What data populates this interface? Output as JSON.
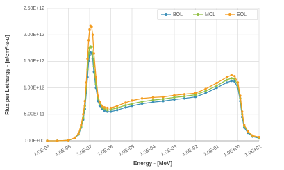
{
  "chart_data": {
    "type": "line",
    "x_label": "Energy - [MeV]",
    "y_label": "Flux per Lethargy - [n/cm²-s-u]",
    "x": [
      1e-09,
      3e-09,
      1e-08,
      2e-08,
      3e-08,
      4e-08,
      5e-08,
      6e-08,
      7e-08,
      8e-08,
      9e-08,
      1e-07,
      1.1e-07,
      1.25e-07,
      1.4e-07,
      1.6e-07,
      2e-07,
      2.5e-07,
      3e-07,
      4e-07,
      5e-07,
      7e-07,
      1e-06,
      2e-06,
      5e-06,
      1e-05,
      3e-05,
      0.0001,
      0.0003,
      0.001,
      0.003,
      0.01,
      0.03,
      0.1,
      0.3,
      0.5,
      0.7,
      1,
      1.3,
      1.6,
      2,
      3,
      5,
      10
    ],
    "series": [
      {
        "name": "BOL",
        "color": "#3b8fb8",
        "values": [
          0,
          0,
          10000000000.0,
          50000000000.0,
          120000000000.0,
          250000000000.0,
          400000000000.0,
          600000000000.0,
          900000000000.0,
          1200000000000.0,
          1500000000000.0,
          1620000000000.0,
          1670000000000.0,
          1650000000000.0,
          1550000000000.0,
          1300000000000.0,
          1000000000000.0,
          750000000000.0,
          660000000000.0,
          600000000000.0,
          570000000000.0,
          550000000000.0,
          550000000000.0,
          580000000000.0,
          630000000000.0,
          660000000000.0,
          700000000000.0,
          730000000000.0,
          750000000000.0,
          780000000000.0,
          800000000000.0,
          830000000000.0,
          900000000000.0,
          1000000000000.0,
          1100000000000.0,
          1130000000000.0,
          1120000000000.0,
          1000000000000.0,
          750000000000.0,
          450000000000.0,
          250000000000.0,
          150000000000.0,
          80000000000.0,
          50000000000.0
        ]
      },
      {
        "name": "MOL",
        "color": "#93c047",
        "values": [
          0,
          0,
          10000000000.0,
          50000000000.0,
          130000000000.0,
          270000000000.0,
          430000000000.0,
          660000000000.0,
          1000000000000.0,
          1350000000000.0,
          1650000000000.0,
          1750000000000.0,
          1780000000000.0,
          1770000000000.0,
          1650000000000.0,
          1400000000000.0,
          1070000000000.0,
          800000000000.0,
          700000000000.0,
          630000000000.0,
          600000000000.0,
          580000000000.0,
          590000000000.0,
          620000000000.0,
          670000000000.0,
          700000000000.0,
          740000000000.0,
          770000000000.0,
          790000000000.0,
          820000000000.0,
          840000000000.0,
          870000000000.0,
          940000000000.0,
          1040000000000.0,
          1150000000000.0,
          1180000000000.0,
          1170000000000.0,
          1050000000000.0,
          800000000000.0,
          500000000000.0,
          280000000000.0,
          170000000000.0,
          90000000000.0,
          60000000000.0
        ]
      },
      {
        "name": "EOL",
        "color": "#f39c1f",
        "values": [
          0,
          0,
          10000000000.0,
          60000000000.0,
          140000000000.0,
          300000000000.0,
          500000000000.0,
          750000000000.0,
          1100000000000.0,
          1550000000000.0,
          1900000000000.0,
          2100000000000.0,
          2170000000000.0,
          2150000000000.0,
          2000000000000.0,
          1650000000000.0,
          1200000000000.0,
          850000000000.0,
          730000000000.0,
          660000000000.0,
          630000000000.0,
          620000000000.0,
          620000000000.0,
          660000000000.0,
          720000000000.0,
          760000000000.0,
          800000000000.0,
          820000000000.0,
          830000000000.0,
          860000000000.0,
          880000000000.0,
          900000000000.0,
          980000000000.0,
          1090000000000.0,
          1200000000000.0,
          1240000000000.0,
          1220000000000.0,
          1100000000000.0,
          850000000000.0,
          550000000000.0,
          300000000000.0,
          180000000000.0,
          100000000000.0,
          70000000000.0
        ]
      }
    ],
    "xlim": [
      1e-09,
      10
    ],
    "x_log": true,
    "xticks": [
      {
        "value": 1e-09,
        "label": "1.0E-09"
      },
      {
        "value": 1e-08,
        "label": "1.0E-08"
      },
      {
        "value": 1e-07,
        "label": "1.0E-07"
      },
      {
        "value": 1e-06,
        "label": "1.0E-06"
      },
      {
        "value": 1e-05,
        "label": "1.0E-05"
      },
      {
        "value": 0.0001,
        "label": "1.0E-04"
      },
      {
        "value": 0.001,
        "label": "1.0E-03"
      },
      {
        "value": 0.01,
        "label": "1.0E-02"
      },
      {
        "value": 0.1,
        "label": "1.0E-01"
      },
      {
        "value": 1,
        "label": "1.0E+00"
      },
      {
        "value": 10,
        "label": "1.0E+01"
      }
    ],
    "ylim": [
      0,
      2500000000000.0
    ],
    "yticks": [
      {
        "value": 0,
        "label": "0.00E+00"
      },
      {
        "value": 500000000000.0,
        "label": "5.00E+11"
      },
      {
        "value": 1000000000000.0,
        "label": "1.00E+12"
      },
      {
        "value": 1500000000000.0,
        "label": "1.50E+12"
      },
      {
        "value": 2000000000000.0,
        "label": "2.00E+12"
      },
      {
        "value": 2500000000000.0,
        "label": "2.50E+12"
      }
    ],
    "grid": true,
    "legend_position": "top-right"
  }
}
